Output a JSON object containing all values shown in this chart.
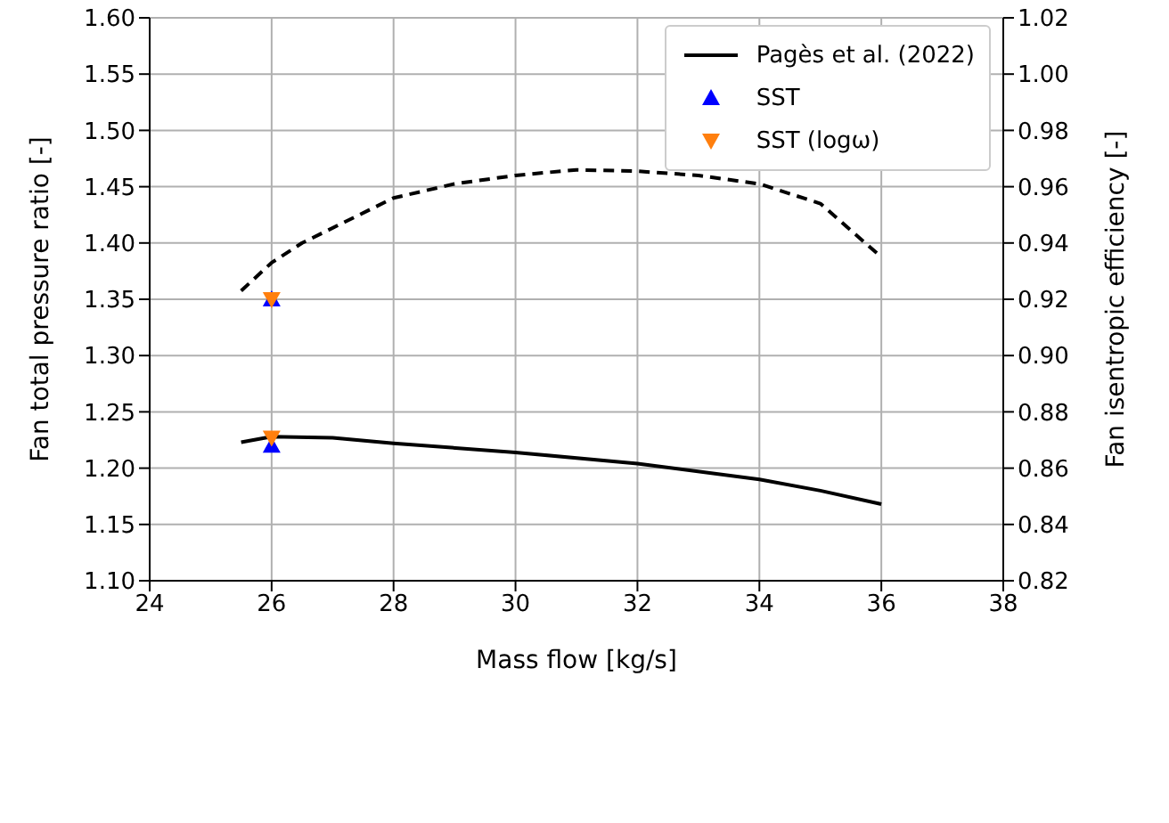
{
  "chart_data": {
    "type": "line",
    "xlabel": "Mass flow [kg/s]",
    "ylabel": "Fan total pressure ratio [-]",
    "y2label": "Fan isentropic efficiency [-]",
    "xlim": [
      24,
      38
    ],
    "xticks": [
      24,
      26,
      28,
      30,
      32,
      34,
      36,
      38
    ],
    "ylim": [
      1.1,
      1.6
    ],
    "yticks": [
      {
        "value": 1.1,
        "label": "1.10"
      },
      {
        "value": 1.15,
        "label": "1.15"
      },
      {
        "value": 1.2,
        "label": "1.20"
      },
      {
        "value": 1.25,
        "label": "1.25"
      },
      {
        "value": 1.3,
        "label": "1.30"
      },
      {
        "value": 1.35,
        "label": "1.35"
      },
      {
        "value": 1.4,
        "label": "1.40"
      },
      {
        "value": 1.45,
        "label": "1.45"
      },
      {
        "value": 1.5,
        "label": "1.50"
      },
      {
        "value": 1.55,
        "label": "1.55"
      },
      {
        "value": 1.6,
        "label": "1.60"
      }
    ],
    "y2lim": [
      0.82,
      1.02
    ],
    "y2ticks": [
      0.82,
      0.84,
      0.86,
      0.88,
      {
        "value": 0.9,
        "label": "0.90"
      },
      0.92,
      0.94,
      0.96,
      0.98,
      {
        "value": 1.0,
        "label": "1.00"
      },
      1.02
    ],
    "grid": true,
    "legend": "top right",
    "series": [
      {
        "name": "Pagès et al. (2022)",
        "color": "#000000",
        "line_style": "solid",
        "marker": "none",
        "x": [
          25.5,
          26,
          27,
          28,
          30,
          32,
          34,
          35,
          36
        ],
        "values": [
          1.223,
          1.228,
          1.227,
          1.222,
          1.214,
          1.204,
          1.19,
          1.18,
          1.168
        ]
      },
      {
        "color": "#000000",
        "line_style": "dashed",
        "marker": "none",
        "axis": "y2",
        "x": [
          25.5,
          26,
          26.5,
          28,
          29,
          30,
          31,
          32,
          33,
          34,
          35,
          36
        ],
        "values": [
          0.923,
          0.933,
          0.94,
          0.956,
          0.961,
          0.964,
          0.966,
          0.9655,
          0.964,
          0.961,
          0.954,
          0.935
        ]
      },
      {
        "name": "SST",
        "type": "scatter",
        "color": "#0000ff",
        "marker": "triangle",
        "x": [
          26
        ],
        "values": [
          1.22
        ]
      },
      {
        "type": "scatter",
        "color": "#0000ff",
        "marker": "triangle",
        "axis": "y2",
        "x": [
          26
        ],
        "values": [
          0.92
        ]
      },
      {
        "name": "SST (logω)",
        "type": "scatter",
        "color": "#ff7f0e",
        "marker": "triangle_down",
        "x": [
          26
        ],
        "values": [
          1.227
        ]
      },
      {
        "type": "scatter",
        "color": "#ff7f0e",
        "marker": "triangle_down",
        "axis": "y2",
        "x": [
          26
        ],
        "values": [
          0.92
        ]
      }
    ]
  }
}
